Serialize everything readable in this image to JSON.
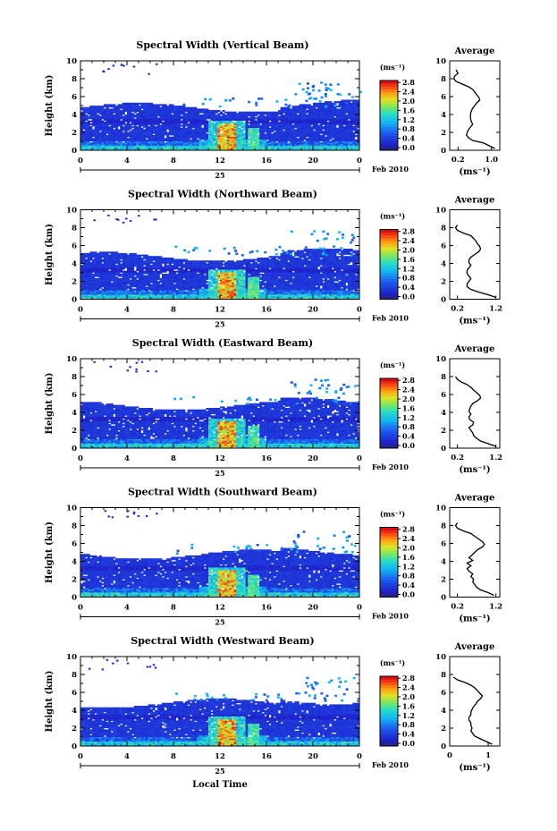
{
  "chart_data": [
    {
      "type": "heatmap",
      "title": "Spectral Width (Vertical Beam)",
      "ylabel": "Height (km)",
      "ylim": [
        0,
        10
      ],
      "yticks": [
        "0",
        "2",
        "4",
        "6",
        "8",
        "10"
      ],
      "xlim": [
        0,
        24
      ],
      "xticks": [
        "0",
        "4",
        "8",
        "12",
        "16",
        "20",
        "0"
      ],
      "date_day": "25",
      "date_month_year": "Feb 2010",
      "colorbar": {
        "unit": "(ms⁻¹)",
        "ticks": [
          "0.0",
          "0.4",
          "0.8",
          "1.2",
          "1.6",
          "2.0",
          "2.4",
          "2.8"
        ],
        "range": [
          0,
          3.0
        ]
      },
      "profile": {
        "title": "Average",
        "xlabel": "(ms⁻¹)",
        "xticks": [
          "0.2",
          "1.0"
        ],
        "xlim": [
          0.0,
          1.2
        ],
        "yticks": [
          "0",
          "2",
          "4",
          "6",
          "8",
          "10"
        ],
        "ylim": [
          0,
          10
        ],
        "heights": [
          0.2,
          0.5,
          0.8,
          1.1,
          1.4,
          1.7,
          2.0,
          2.3,
          2.6,
          2.9,
          3.2,
          3.5,
          3.8,
          4.1,
          4.4,
          4.7,
          5.0,
          5.3,
          5.6,
          5.9,
          6.2,
          6.5,
          6.8,
          7.1,
          7.4,
          7.7,
          8.0,
          8.3,
          8.6,
          9.0
        ],
        "values": [
          1.08,
          0.95,
          0.82,
          0.55,
          0.45,
          0.4,
          0.42,
          0.45,
          0.5,
          0.55,
          0.52,
          0.5,
          0.5,
          0.5,
          0.52,
          0.55,
          0.6,
          0.65,
          0.72,
          0.7,
          0.65,
          0.6,
          0.55,
          0.45,
          0.3,
          0.15,
          0.1,
          0.12,
          0.2,
          0.15
        ]
      }
    },
    {
      "type": "heatmap",
      "title": "Spectral Width (Northward Beam)",
      "ylabel": "Height (km)",
      "ylim": [
        0,
        10
      ],
      "yticks": [
        "0",
        "2",
        "4",
        "6",
        "8",
        "10"
      ],
      "xlim": [
        0,
        24
      ],
      "xticks": [
        "0",
        "4",
        "8",
        "12",
        "16",
        "20",
        "0"
      ],
      "date_day": "25",
      "date_month_year": "Feb 2010",
      "colorbar": {
        "unit": "(ms⁻¹)",
        "ticks": [
          "0.0",
          "0.4",
          "0.8",
          "1.2",
          "1.6",
          "2.0",
          "2.4",
          "2.8"
        ],
        "range": [
          0,
          3.0
        ]
      },
      "profile": {
        "title": "Average",
        "xlabel": "(ms⁻¹)",
        "xticks": [
          "0.2",
          "1.2"
        ],
        "xlim": [
          0.0,
          1.3
        ],
        "yticks": [
          "0",
          "2",
          "4",
          "6",
          "8",
          "10"
        ],
        "ylim": [
          0,
          10
        ],
        "heights": [
          0.2,
          0.5,
          0.8,
          1.1,
          1.4,
          1.7,
          2.0,
          2.3,
          2.6,
          2.9,
          3.2,
          3.5,
          3.8,
          4.1,
          4.4,
          4.7,
          5.0,
          5.3,
          5.6,
          5.9,
          6.2,
          6.5,
          6.8,
          7.1,
          7.4,
          7.7,
          8.0,
          8.3
        ],
        "values": [
          1.2,
          1.0,
          0.75,
          0.55,
          0.45,
          0.45,
          0.5,
          0.55,
          0.5,
          0.45,
          0.45,
          0.5,
          0.55,
          0.5,
          0.5,
          0.55,
          0.65,
          0.75,
          0.8,
          0.78,
          0.72,
          0.68,
          0.62,
          0.55,
          0.35,
          0.2,
          0.15,
          0.2
        ]
      }
    },
    {
      "type": "heatmap",
      "title": "Spectral Width (Eastward Beam)",
      "ylabel": "Height (km)",
      "ylim": [
        0,
        10
      ],
      "yticks": [
        "0",
        "2",
        "4",
        "6",
        "8",
        "10"
      ],
      "xlim": [
        0,
        24
      ],
      "xticks": [
        "0",
        "4",
        "8",
        "12",
        "16",
        "20",
        "0"
      ],
      "date_day": "25",
      "date_month_year": "Feb 2010",
      "colorbar": {
        "unit": "(ms⁻¹)",
        "ticks": [
          "0.0",
          "0.4",
          "0.8",
          "1.2",
          "1.6",
          "2.0",
          "2.4",
          "2.8"
        ],
        "range": [
          0,
          3.0
        ]
      },
      "profile": {
        "title": "Average",
        "xlabel": "(ms⁻¹)",
        "xticks": [
          "0.2",
          "1.2"
        ],
        "xlim": [
          0.0,
          1.3
        ],
        "yticks": [
          "0",
          "2",
          "4",
          "6",
          "8",
          "10"
        ],
        "ylim": [
          0,
          10
        ],
        "heights": [
          0.2,
          0.5,
          0.8,
          1.1,
          1.4,
          1.7,
          2.0,
          2.3,
          2.6,
          2.9,
          3.2,
          3.5,
          3.8,
          4.1,
          4.4,
          4.7,
          5.0,
          5.3,
          5.6,
          5.9,
          6.2,
          6.5,
          6.8,
          7.1,
          7.4,
          7.7,
          8.0
        ],
        "values": [
          1.2,
          1.0,
          0.8,
          0.7,
          0.62,
          0.6,
          0.55,
          0.5,
          0.6,
          0.62,
          0.52,
          0.5,
          0.55,
          0.5,
          0.52,
          0.55,
          0.6,
          0.72,
          0.8,
          0.78,
          0.7,
          0.62,
          0.55,
          0.45,
          0.3,
          0.2,
          0.15
        ]
      }
    },
    {
      "type": "heatmap",
      "title": "Spectral Width (Southward Beam)",
      "ylabel": "Height (km)",
      "ylim": [
        0,
        10
      ],
      "yticks": [
        "0",
        "2",
        "4",
        "6",
        "8",
        "10"
      ],
      "xlim": [
        0,
        24
      ],
      "xticks": [
        "0",
        "4",
        "8",
        "12",
        "16",
        "20",
        "0"
      ],
      "date_day": "25",
      "date_month_year": "Feb 2010",
      "colorbar": {
        "unit": "(ms⁻¹)",
        "ticks": [
          "0.0",
          "0.4",
          "0.8",
          "1.2",
          "1.6",
          "2.0",
          "2.4",
          "2.8"
        ],
        "range": [
          0,
          3.0
        ]
      },
      "profile": {
        "title": "Average",
        "xlabel": "(ms⁻¹)",
        "xticks": [
          "0.2",
          "1.2"
        ],
        "xlim": [
          0.0,
          1.3
        ],
        "yticks": [
          "0",
          "2",
          "4",
          "6",
          "8",
          "10"
        ],
        "ylim": [
          0,
          10
        ],
        "heights": [
          0.2,
          0.5,
          0.8,
          1.1,
          1.4,
          1.7,
          2.0,
          2.3,
          2.6,
          2.9,
          3.2,
          3.5,
          3.8,
          4.1,
          4.4,
          4.7,
          5.0,
          5.3,
          5.6,
          5.9,
          6.2,
          6.5,
          6.8,
          7.1,
          7.4,
          7.7,
          8.0,
          8.3
        ],
        "values": [
          1.15,
          1.0,
          0.8,
          0.7,
          0.65,
          0.6,
          0.62,
          0.55,
          0.6,
          0.5,
          0.45,
          0.55,
          0.45,
          0.6,
          0.5,
          0.58,
          0.65,
          0.72,
          0.85,
          0.9,
          0.85,
          0.75,
          0.65,
          0.55,
          0.35,
          0.2,
          0.15,
          0.2
        ]
      }
    },
    {
      "type": "heatmap",
      "title": "Spectral Width (Westward Beam)",
      "ylabel": "Height (km)",
      "ylim": [
        0,
        10
      ],
      "yticks": [
        "0",
        "2",
        "4",
        "6",
        "8",
        "10"
      ],
      "xlim": [
        0,
        24
      ],
      "xticks": [
        "0",
        "4",
        "8",
        "12",
        "16",
        "20",
        "0"
      ],
      "date_day": "25",
      "date_month_year": "Feb 2010",
      "xlabel": "Local Time",
      "colorbar": {
        "unit": "(ms⁻¹)",
        "ticks": [
          "0.0",
          "0.4",
          "0.8",
          "1.2",
          "1.6",
          "2.0",
          "2.4",
          "2.8"
        ],
        "range": [
          0,
          3.0
        ]
      },
      "profile": {
        "title": "Average",
        "xlabel": "(ms⁻¹)",
        "xticks": [
          "0",
          "1"
        ],
        "xlim": [
          0.0,
          1.3
        ],
        "yticks": [
          "0",
          "2",
          "4",
          "6",
          "8",
          "10"
        ],
        "ylim": [
          0,
          10
        ],
        "heights": [
          0.2,
          0.5,
          0.8,
          1.1,
          1.4,
          1.7,
          2.0,
          2.3,
          2.6,
          2.9,
          3.2,
          3.5,
          3.8,
          4.1,
          4.4,
          4.7,
          5.0,
          5.3,
          5.6,
          5.9,
          6.2,
          6.5,
          6.8,
          7.1,
          7.4,
          7.7
        ],
        "values": [
          1.1,
          0.95,
          0.8,
          0.65,
          0.6,
          0.55,
          0.58,
          0.55,
          0.55,
          0.5,
          0.5,
          0.55,
          0.55,
          0.58,
          0.62,
          0.68,
          0.72,
          0.8,
          0.85,
          0.78,
          0.72,
          0.65,
          0.55,
          0.4,
          0.2,
          0.1
        ]
      }
    }
  ]
}
